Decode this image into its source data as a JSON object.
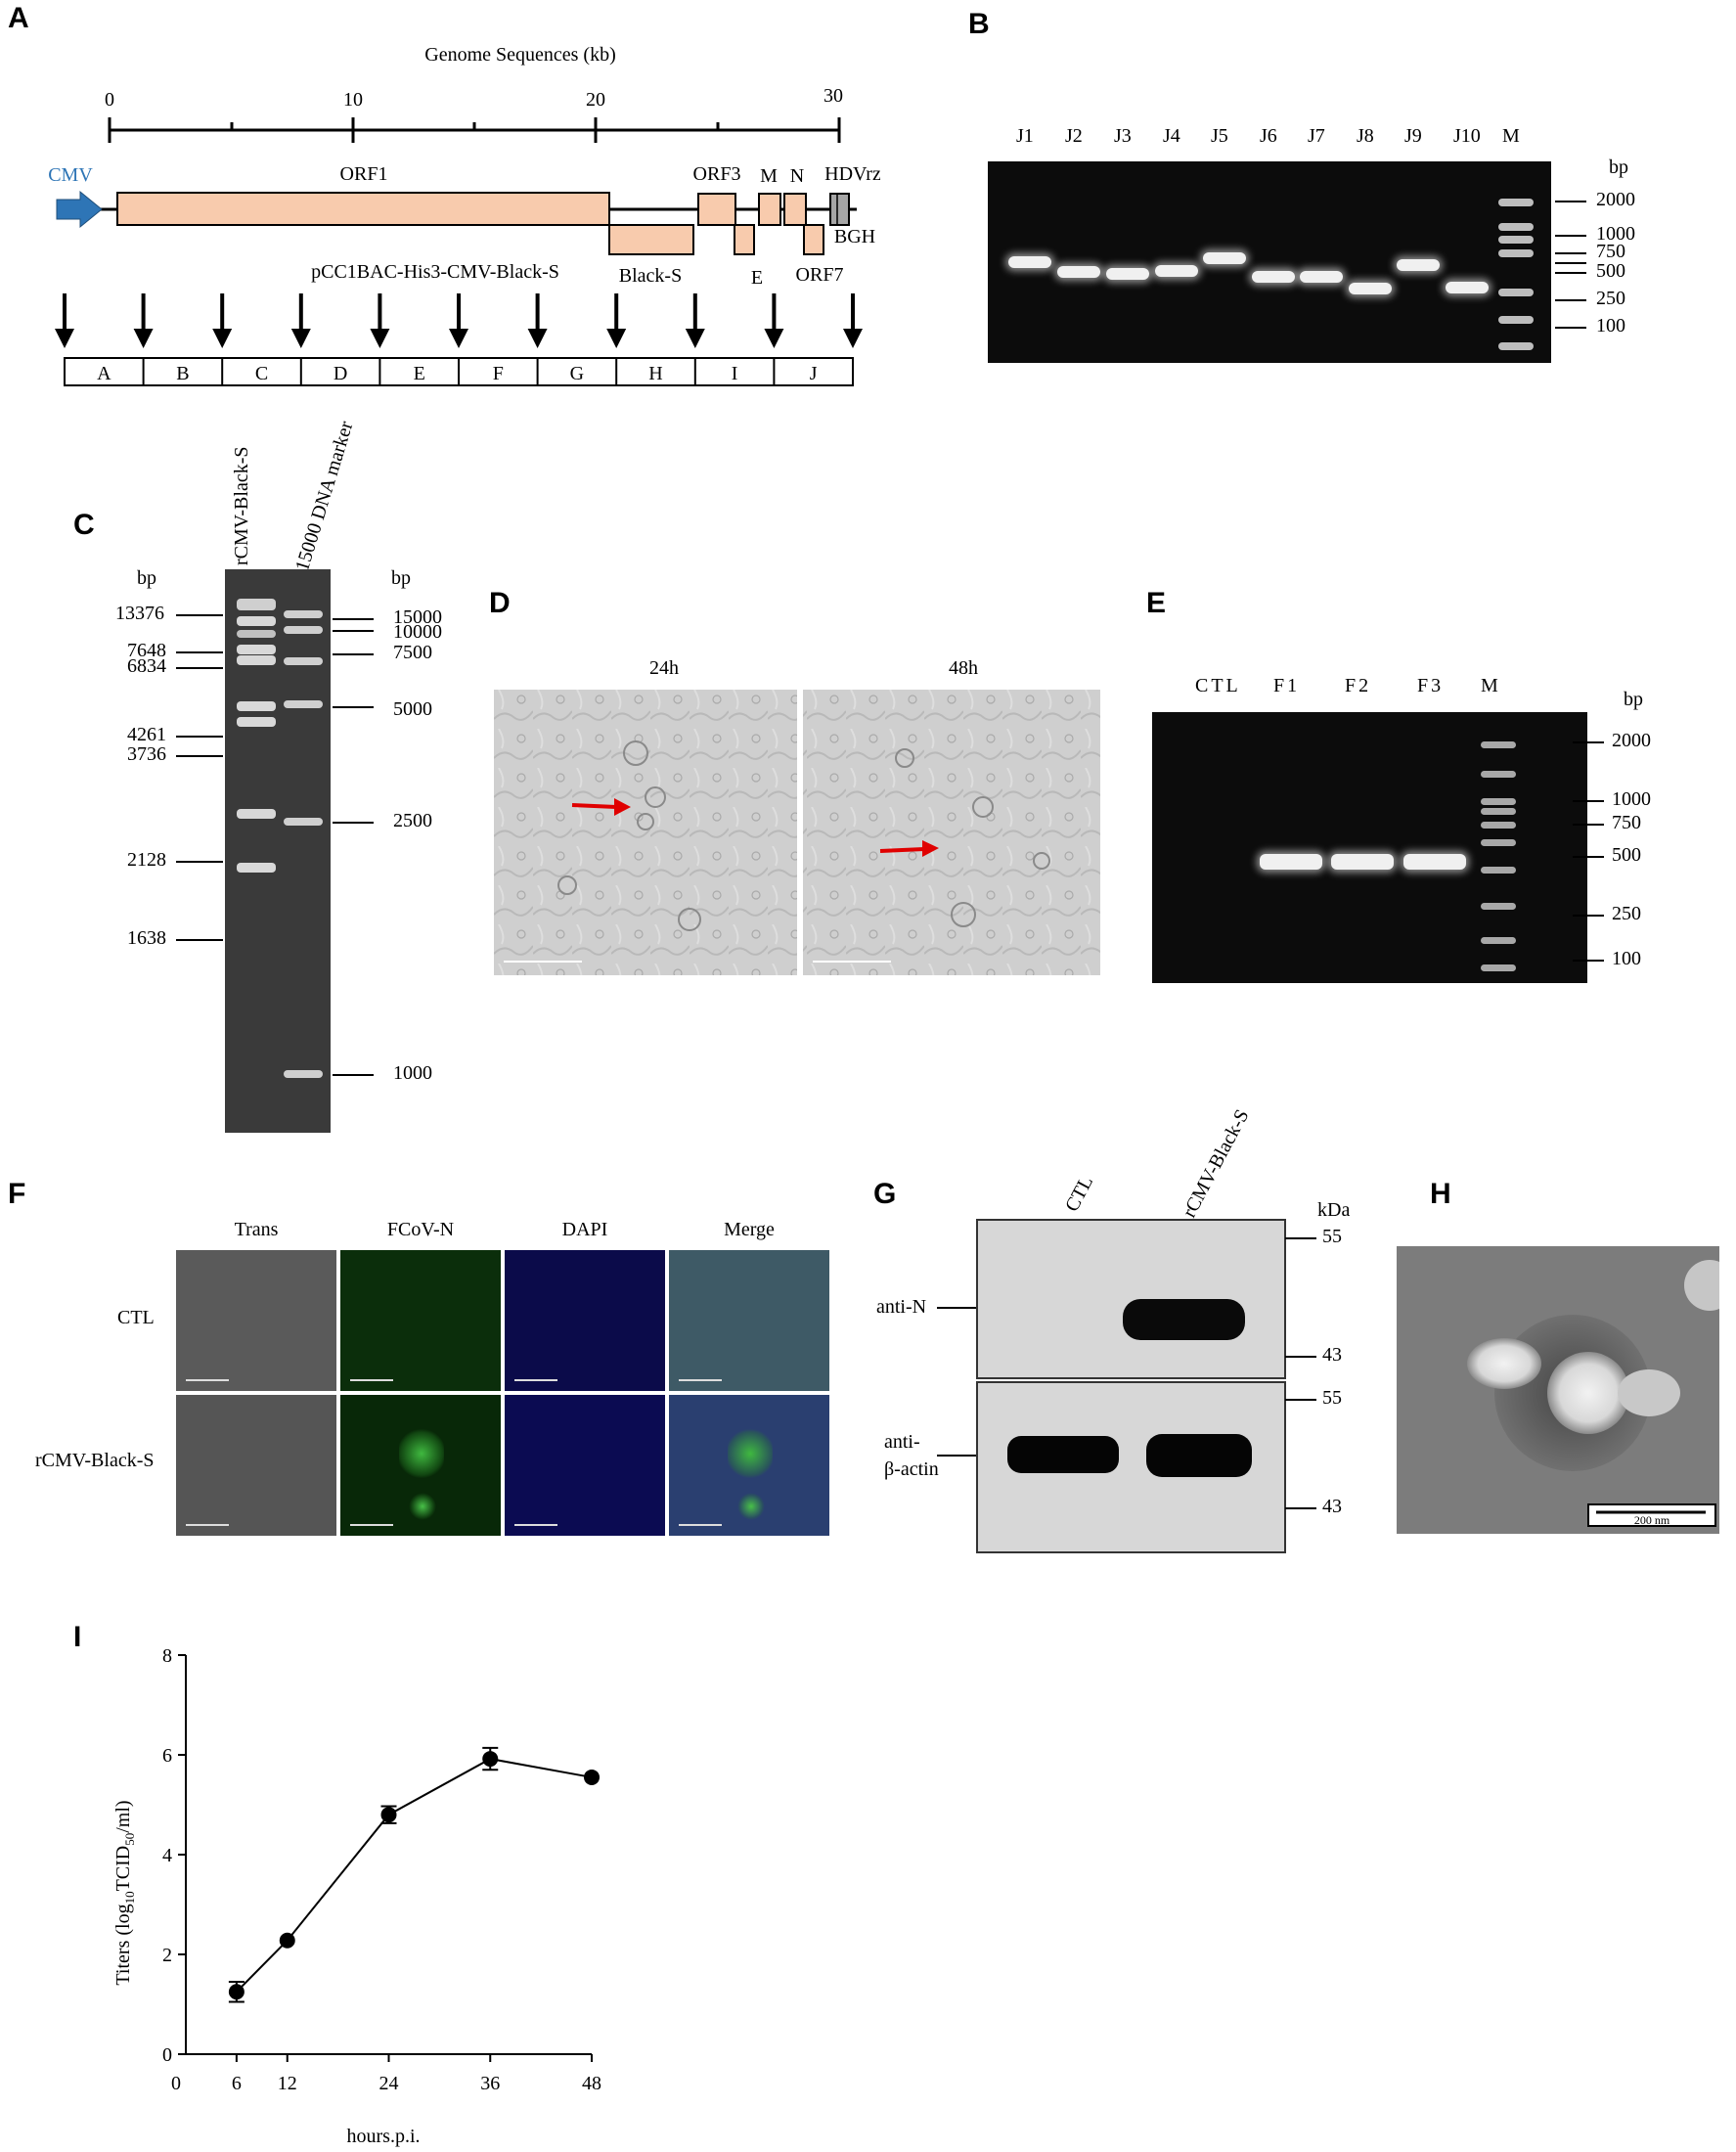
{
  "panels": [
    "A",
    "B",
    "C",
    "D",
    "E",
    "F",
    "G",
    "H",
    "I"
  ],
  "panelA": {
    "title": "Genome Sequences (kb)",
    "scale_ticks": [
      "0",
      "10",
      "20",
      "30"
    ],
    "cmv": "CMV",
    "orf1": "ORF1",
    "orf3": "ORF3",
    "m": "M",
    "n": "N",
    "hdvrz": "HDVrz",
    "black_s": "Black-S",
    "e": "E",
    "orf7": "ORF7",
    "bgh": "BGH",
    "construct": "pCC1BAC-His3-CMV-Black-S",
    "fragments": [
      "A",
      "B",
      "C",
      "D",
      "E",
      "F",
      "G",
      "H",
      "I",
      "J"
    ],
    "colors": {
      "gene_fill": "#f8cbad",
      "cmv_arrow": "#2e75b6",
      "hdv_fill": "#a6a6a6"
    }
  },
  "panelB": {
    "lanes": [
      "J1",
      "J2",
      "J3",
      "J4",
      "J5",
      "J6",
      "J7",
      "J8",
      "J9",
      "J10",
      "M"
    ],
    "unit": "bp",
    "marker_labels": [
      "2000",
      "1000",
      "750",
      "500",
      "250",
      "100"
    ]
  },
  "panelC": {
    "lane_labels": [
      "rCMV-Black-S",
      "15000  DNA  marker"
    ],
    "left_unit": "bp",
    "right_unit": "bp",
    "left_sizes": [
      "13376",
      "7648",
      "6834",
      "4261",
      "3736",
      "2128",
      "1638"
    ],
    "right_sizes": [
      "15000",
      "10000",
      "7500",
      "5000",
      "2500",
      "1000"
    ]
  },
  "panelD": {
    "timepoints": [
      "24h",
      "48h"
    ]
  },
  "panelE": {
    "lanes": [
      "CTL",
      "F1",
      "F2",
      "F3",
      "M"
    ],
    "unit": "bp",
    "marker_labels": [
      "2000",
      "1000",
      "750",
      "500",
      "250",
      "100"
    ]
  },
  "panelF": {
    "columns": [
      "Trans",
      "FCoV-N",
      "DAPI",
      "Merge"
    ],
    "rows": [
      "CTL",
      "rCMV-Black-S"
    ]
  },
  "panelG": {
    "lanes": [
      "CTL",
      "rCMV-Black-S"
    ],
    "unit": "kDa",
    "antibodies": [
      "anti-N",
      "anti-\nβ-actin"
    ],
    "marker_top": [
      "55",
      "43"
    ],
    "marker_bottom": [
      "55",
      "43"
    ]
  },
  "panelH": {
    "scale_bar": "200 nm"
  },
  "panelI": {
    "chart_data": {
      "type": "line",
      "x": [
        6,
        12,
        24,
        36,
        48
      ],
      "y": [
        1.25,
        2.28,
        4.8,
        5.92,
        5.55
      ],
      "error": [
        0.2,
        0.05,
        0.17,
        0.22,
        0.05
      ],
      "xlabel": "hours.p.i.",
      "ylabel_parts": [
        "Titers (log",
        "10",
        "TCID",
        "50",
        "/ml)"
      ],
      "xticks": [
        0,
        6,
        12,
        24,
        36,
        48
      ],
      "yticks": [
        0,
        2,
        4,
        6,
        8
      ],
      "ylim": [
        0,
        8
      ],
      "xlim": [
        0,
        48
      ]
    }
  }
}
